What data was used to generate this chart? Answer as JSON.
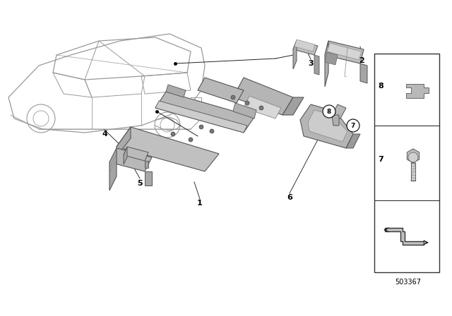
{
  "bg_color": "#ffffff",
  "figure_number": "503367",
  "gray_light": "#c8c8c8",
  "gray_mid": "#aaaaaa",
  "gray_dark": "#888888",
  "gray_darker": "#666666",
  "outline": "#555555",
  "line_color": "#222222",
  "car_line": "#aaaaaa",
  "figsize": [
    6.4,
    4.48
  ],
  "dpi": 100
}
